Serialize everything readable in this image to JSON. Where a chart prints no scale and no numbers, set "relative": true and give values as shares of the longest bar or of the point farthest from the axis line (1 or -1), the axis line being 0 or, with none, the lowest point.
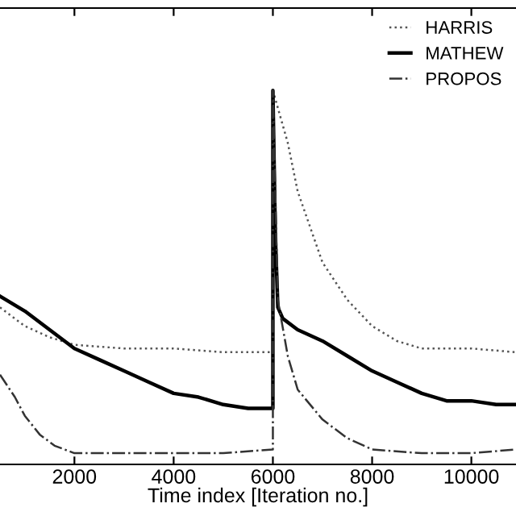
{
  "chart_data": {
    "type": "line",
    "relative": true,
    "xlabel": "Time index [Iteration no.]",
    "xlim": [
      500,
      10900
    ],
    "xticks": [
      2000,
      4000,
      6000,
      8000,
      10000
    ],
    "legend": "top right",
    "grid": false,
    "series": [
      {
        "name": "HARRIS",
        "color": "#555555",
        "line_style": "dotted",
        "x": [
          500,
          1000,
          1500,
          2000,
          3000,
          4000,
          5000,
          6000,
          6000,
          6300,
          6500,
          7000,
          7500,
          8000,
          8500,
          9000,
          10000,
          10900
        ],
        "values": [
          0.42,
          0.37,
          0.34,
          0.32,
          0.31,
          0.31,
          0.3,
          0.3,
          1.0,
          0.86,
          0.73,
          0.54,
          0.44,
          0.37,
          0.33,
          0.31,
          0.31,
          0.3
        ]
      },
      {
        "name": "MATHEW",
        "color": "#000000",
        "line_style": "solid",
        "x": [
          500,
          1000,
          1500,
          2000,
          2500,
          3000,
          3500,
          4000,
          4500,
          5000,
          5500,
          6000,
          6000,
          6050,
          6100,
          6200,
          6500,
          7000,
          7500,
          8000,
          8500,
          9000,
          9500,
          10000,
          10500,
          10900
        ],
        "values": [
          0.45,
          0.41,
          0.36,
          0.31,
          0.28,
          0.25,
          0.22,
          0.19,
          0.18,
          0.16,
          0.15,
          0.15,
          1.0,
          0.61,
          0.42,
          0.39,
          0.36,
          0.33,
          0.29,
          0.25,
          0.22,
          0.19,
          0.17,
          0.17,
          0.16,
          0.16
        ]
      },
      {
        "name": "PROPOS",
        "color": "#333333",
        "line_style": "dashed",
        "x": [
          500,
          800,
          1000,
          1300,
          1600,
          2000,
          3000,
          4000,
          5000,
          6000,
          6000,
          6100,
          6300,
          6500,
          7000,
          7500,
          8000,
          9000,
          10000,
          10900
        ],
        "values": [
          0.24,
          0.18,
          0.13,
          0.08,
          0.05,
          0.03,
          0.03,
          0.03,
          0.03,
          0.04,
          1.0,
          0.44,
          0.29,
          0.2,
          0.12,
          0.07,
          0.04,
          0.03,
          0.03,
          0.04
        ]
      }
    ]
  }
}
